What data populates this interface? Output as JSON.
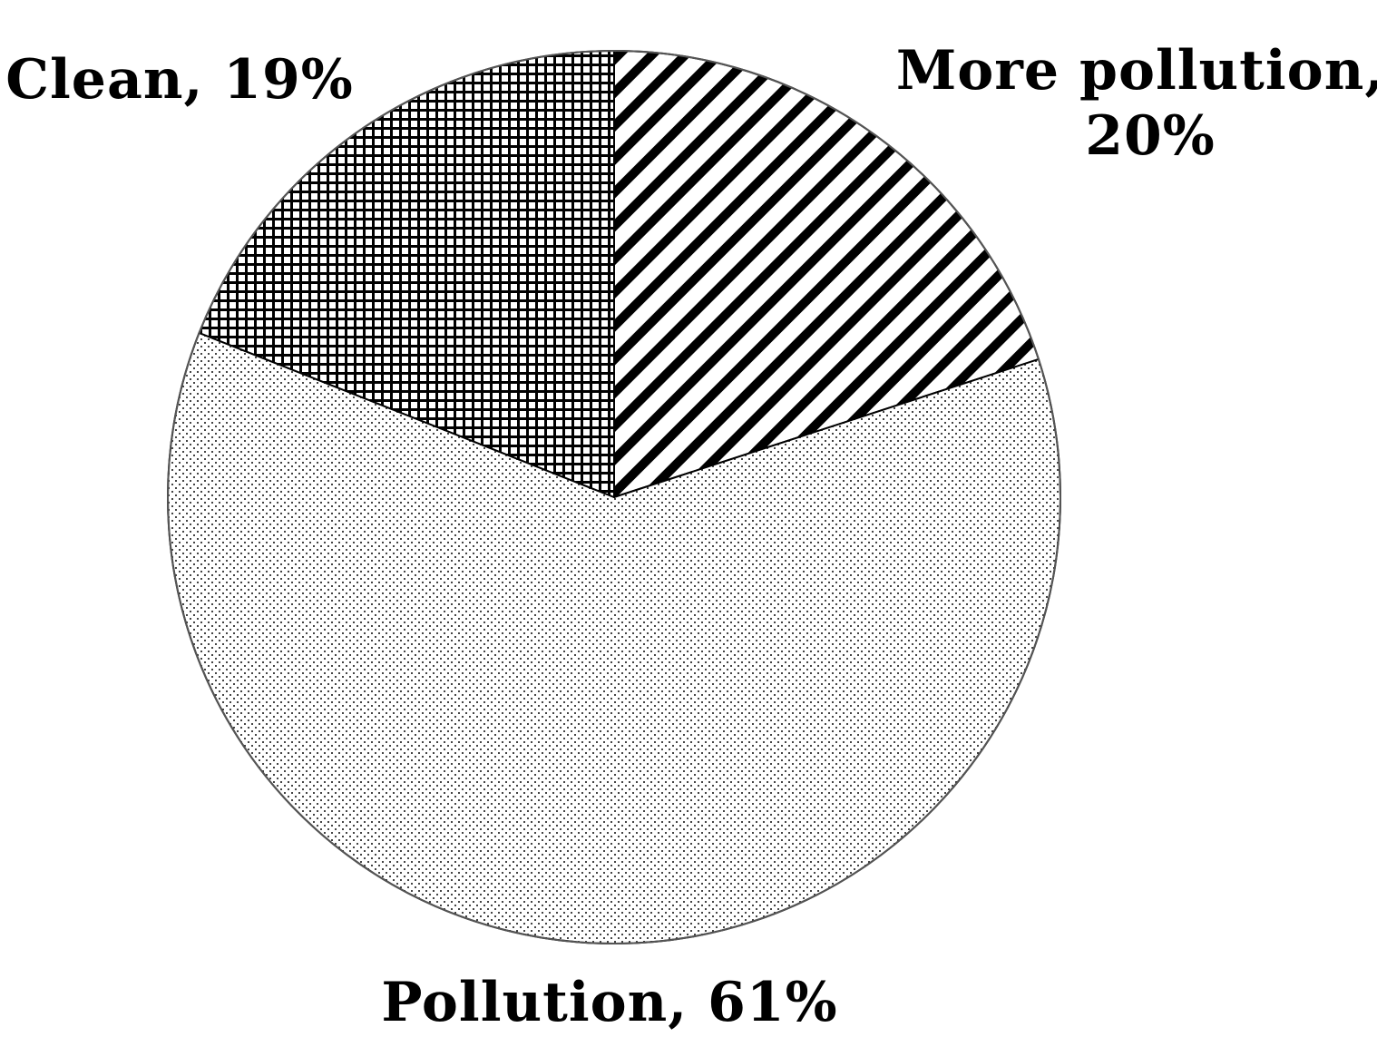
{
  "chart_data": {
    "type": "pie",
    "slices": [
      {
        "label": "More pollution",
        "value": 20,
        "pct_label": "20%",
        "pattern": "diagonal-stripes"
      },
      {
        "label": "Pollution",
        "value": 61,
        "pct_label": "61%",
        "pattern": "dots"
      },
      {
        "label": "Clean",
        "value": 19,
        "pct_label": "19%",
        "pattern": "crosshatch"
      }
    ],
    "labels": {
      "more_pollution_line1": "More pollution,",
      "more_pollution_line2": "20%",
      "pollution": "Pollution, 61%",
      "clean": "Clean, 19%"
    },
    "colors": {
      "stroke": "#000000",
      "background": "#ffffff"
    }
  }
}
